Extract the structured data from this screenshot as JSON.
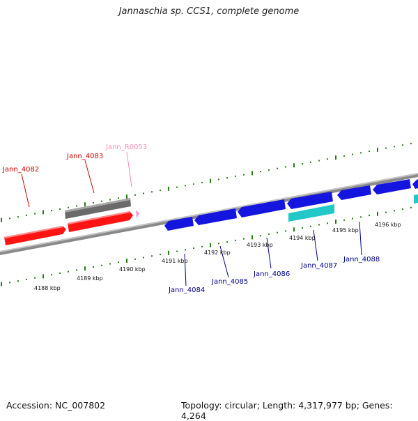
{
  "header": {
    "title": "Jannaschia sp. CCS1, complete genome"
  },
  "footer": {
    "accession": "Accession: NC_007802",
    "summary": "Topology: circular; Length: 4,317,977 bp; Genes: 4,264"
  },
  "colors": {
    "forward_gene": "#ff1010",
    "forward_label": "#cc0000",
    "reverse_gene": "#1515e0",
    "reverse_label": "#00008b",
    "rna": "#ff99cc",
    "rna_label": "#ff88bb",
    "other_feature": "#666666",
    "cds_feature": "#22c8c8",
    "backbone": "#888888",
    "tick": "#2a7a1a"
  },
  "axis": {
    "units": "kbp",
    "labels": [
      "4188 kbp",
      "4189 kbp",
      "4190 kbp",
      "4191 kbp",
      "4192 kbp",
      "4193 kbp",
      "4194 kbp",
      "4195 kbp",
      "4196 kbp"
    ]
  },
  "genes": {
    "forward": [
      {
        "name": "Jann_4082"
      },
      {
        "name": "Jann_4083"
      },
      {
        "name": "Jann_R0053"
      }
    ],
    "reverse": [
      {
        "name": "Jann_4084"
      },
      {
        "name": "Jann_4085"
      },
      {
        "name": "Jann_4086"
      },
      {
        "name": "Jann_4087"
      },
      {
        "name": "Jann_4088"
      }
    ]
  }
}
